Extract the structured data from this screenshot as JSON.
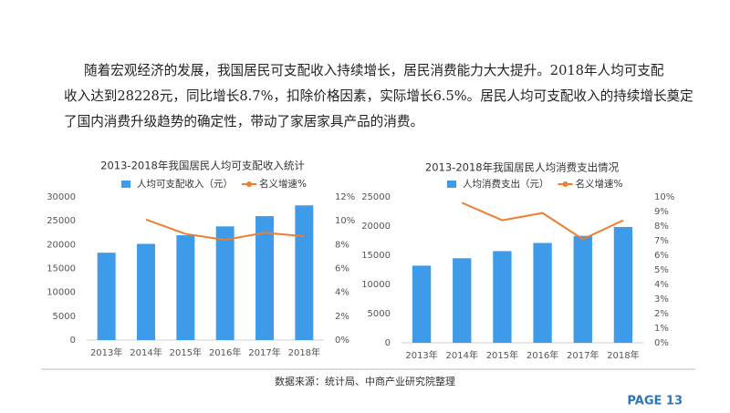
{
  "paragraph": [
    "随着宏观经济的发展，我国居民可支配收入持续增长，居民消费能力大大提升。2018年人均可支配",
    "收入达到28228元，同比增长8.7%，扣除价格因素，实际增长6.5%。居民人均可支配收入的持续增长奠定",
    "了国内消费升级趋势的确定性，带动了家居家具产品的消费。"
  ],
  "chart_data": [
    {
      "type": "bar",
      "title": "2013-2018年我国居民人均可支配收入统计",
      "categories": [
        "2013年",
        "2014年",
        "2015年",
        "2016年",
        "2017年",
        "2018年"
      ],
      "series": [
        {
          "name": "人均可支配收入（元）",
          "type": "bar",
          "color": "#3d9be9",
          "values": [
            18311,
            20167,
            21966,
            23821,
            25974,
            28228
          ]
        },
        {
          "name": "名义增速%",
          "type": "line",
          "axis": "y2",
          "color": "#ed7d31",
          "values": [
            null,
            10.1,
            8.9,
            8.4,
            9.0,
            8.7
          ]
        }
      ],
      "ylim": [
        0,
        30000
      ],
      "yticks": [
        0,
        5000,
        10000,
        15000,
        20000,
        25000,
        30000
      ],
      "y2lim": [
        0,
        12
      ],
      "y2ticks": [
        {
          "value": 0,
          "label": "0%"
        },
        {
          "value": 2,
          "label": "2%"
        },
        {
          "value": 4,
          "label": "4%"
        },
        {
          "value": 6,
          "label": "6%"
        },
        {
          "value": 8,
          "label": "8%"
        },
        {
          "value": 10,
          "label": "10%"
        },
        {
          "value": 12,
          "label": "12%"
        }
      ],
      "legend": "top"
    },
    {
      "type": "bar",
      "title": "2013-2018年我国居民人均消费支出情况",
      "categories": [
        "2013年",
        "2014年",
        "2015年",
        "2016年",
        "2017年",
        "2018年"
      ],
      "series": [
        {
          "name": "人均消费支出（元）",
          "type": "bar",
          "color": "#3d9be9",
          "values": [
            13220,
            14491,
            15712,
            17111,
            18322,
            19853
          ]
        },
        {
          "name": "名义增速%",
          "type": "line",
          "axis": "y2",
          "color": "#ed7d31",
          "values": [
            null,
            9.6,
            8.4,
            8.9,
            7.1,
            8.4
          ]
        }
      ],
      "ylim": [
        0,
        25000
      ],
      "yticks": [
        0,
        5000,
        10000,
        15000,
        20000,
        25000
      ],
      "y2lim": [
        0,
        10
      ],
      "y2ticks": [
        {
          "value": 0,
          "label": "0%"
        },
        {
          "value": 1,
          "label": "1%"
        },
        {
          "value": 2,
          "label": "2%"
        },
        {
          "value": 3,
          "label": "3%"
        },
        {
          "value": 4,
          "label": "4%"
        },
        {
          "value": 5,
          "label": "5%"
        },
        {
          "value": 6,
          "label": "6%"
        },
        {
          "value": 7,
          "label": "7%"
        },
        {
          "value": 8,
          "label": "8%"
        },
        {
          "value": 9,
          "label": "9%"
        },
        {
          "value": 10,
          "label": "10%"
        }
      ],
      "legend": "top"
    }
  ],
  "source": "数据来源：统计局、中商产业研究院整理",
  "page_number": "PAGE 13"
}
